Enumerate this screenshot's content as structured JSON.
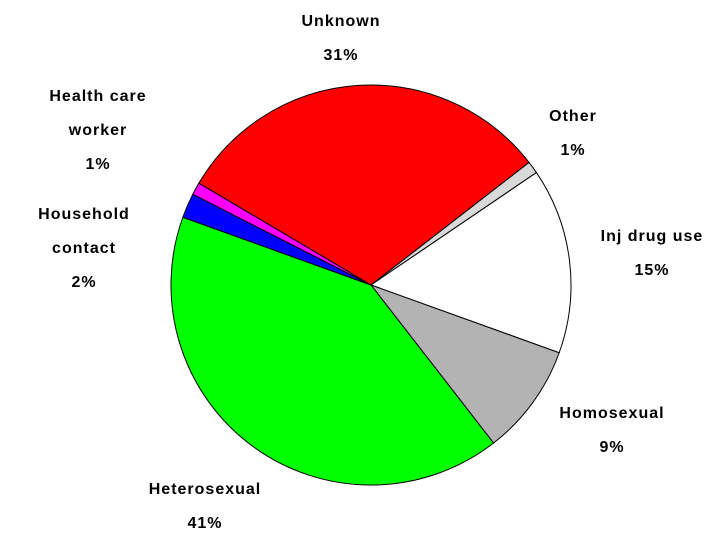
{
  "chart_data": {
    "type": "pie",
    "categories": [
      "Unknown",
      "Other",
      "Inj drug use",
      "Homosexual",
      "Heterosexual",
      "Household contact",
      "Health care worker"
    ],
    "values": [
      31,
      1,
      15,
      9,
      41,
      2,
      1
    ],
    "value_labels": [
      "31%",
      "1%",
      "15%",
      "9%",
      "41%",
      "2%",
      "1%"
    ],
    "colors": [
      "#ff0000",
      "#d9d9d9",
      "#ffffff",
      "#b3b3b3",
      "#00ff00",
      "#0000ff",
      "#ff00ff"
    ]
  }
}
